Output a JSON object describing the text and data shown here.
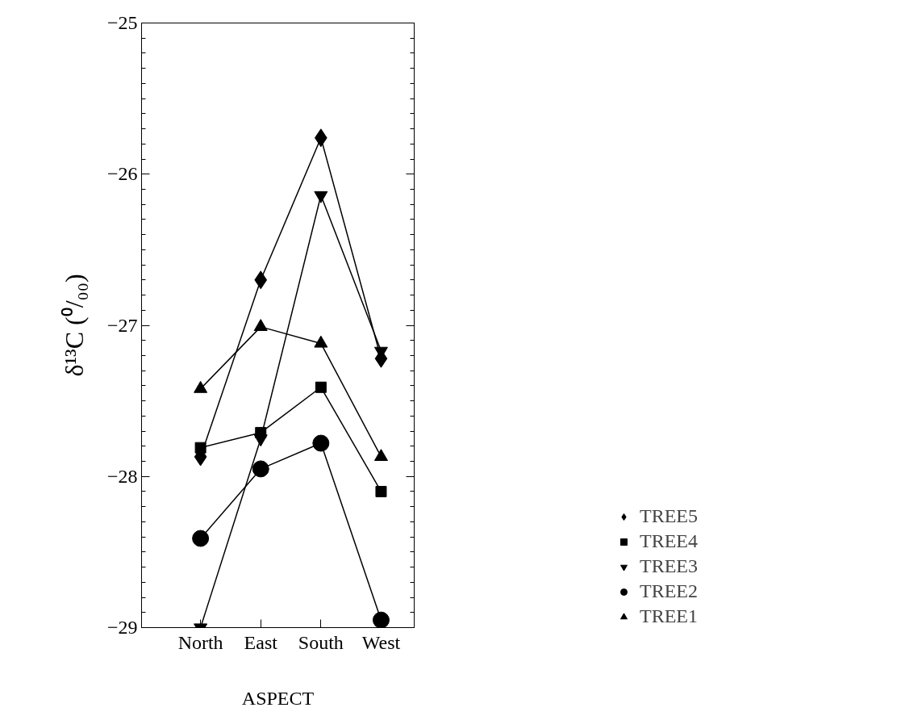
{
  "chart_data": {
    "type": "line",
    "xlabel": "ASPECT",
    "ylabel": "δ¹³C (⁰/₀₀)",
    "categories": [
      "North",
      "East",
      "South",
      "West"
    ],
    "ylim": [
      -29,
      -25
    ],
    "yticks": [
      -29,
      -28,
      -27,
      -26,
      -25
    ],
    "grid": false,
    "legend": "right",
    "line_style": "solid",
    "series": [
      {
        "name": "TREE5",
        "color": "#000000",
        "marker": "diamond",
        "values": [
          -27.87,
          -26.7,
          -25.76,
          -27.22
        ]
      },
      {
        "name": "TREE4",
        "color": "#000000",
        "marker": "square",
        "values": [
          -27.81,
          -27.71,
          -27.41,
          -28.1
        ]
      },
      {
        "name": "TREE3",
        "color": "#000000",
        "marker": "triangle-down",
        "values": [
          -29.0,
          -27.75,
          -26.14,
          -27.17
        ]
      },
      {
        "name": "TREE2",
        "color": "#000000",
        "marker": "circle",
        "values": [
          -28.41,
          -27.95,
          -27.78,
          -28.95
        ]
      },
      {
        "name": "TREE1",
        "color": "#000000",
        "marker": "triangle",
        "values": [
          -27.42,
          -27.01,
          -27.12,
          -27.87
        ]
      }
    ]
  }
}
